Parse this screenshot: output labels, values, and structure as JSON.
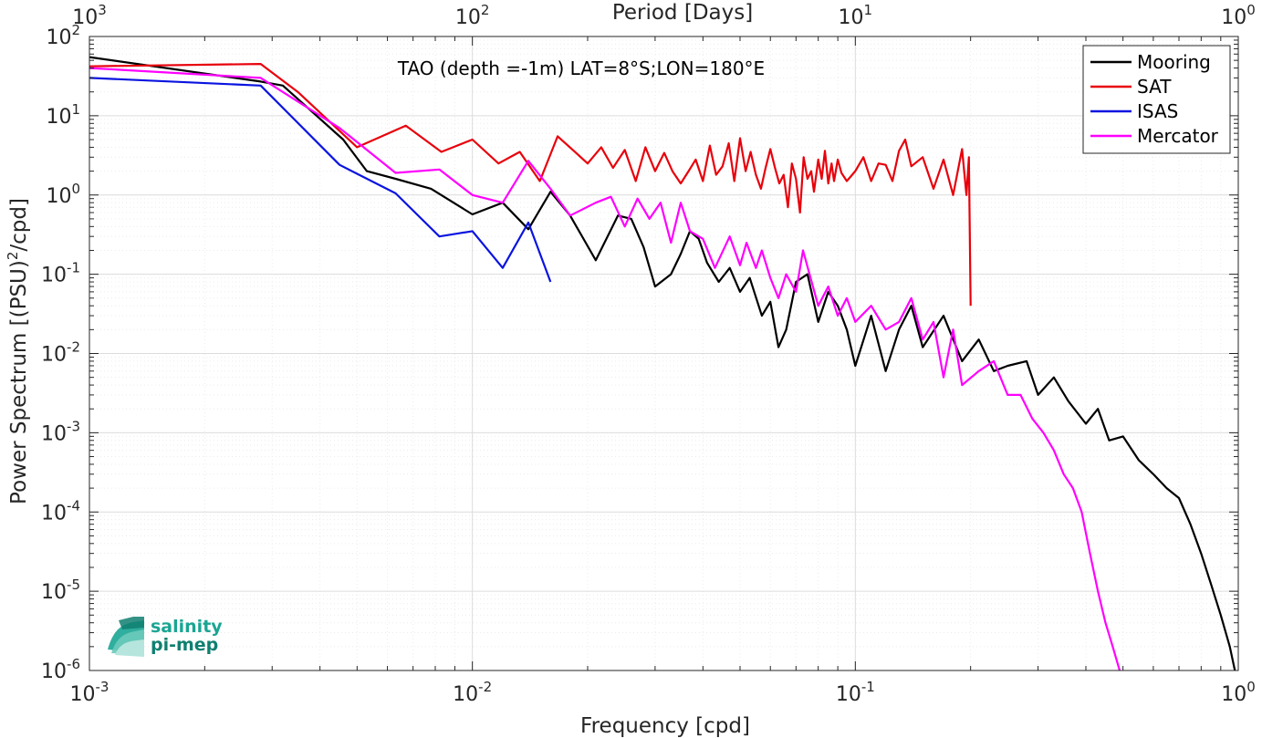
{
  "chart_data": {
    "type": "line",
    "annotation": "TAO (depth =-1m) LAT=8°S;LON=180°E",
    "xlabel": "Frequency [cpd]",
    "ylabel_main": "Power Spectrum [(PSU)",
    "ylabel_sup": "2",
    "ylabel_tail": "/cpd]",
    "top_axis_label": "Period [Days]",
    "xscale": "log",
    "yscale": "log",
    "xlim": [
      0.001,
      1
    ],
    "ylim": [
      1e-06,
      100
    ],
    "grid": true,
    "legend_position": "top-right",
    "x_ticks": [
      {
        "value": 0.001,
        "base": "10",
        "exp": "-3"
      },
      {
        "value": 0.01,
        "base": "10",
        "exp": "-2"
      },
      {
        "value": 0.1,
        "base": "10",
        "exp": "-1"
      },
      {
        "value": 1,
        "base": "10",
        "exp": "0"
      }
    ],
    "top_ticks": [
      {
        "value": 0.001,
        "base": "10",
        "exp": "3"
      },
      {
        "value": 0.01,
        "base": "10",
        "exp": "2"
      },
      {
        "value": 0.1,
        "base": "10",
        "exp": "1"
      },
      {
        "value": 1,
        "base": "10",
        "exp": "0"
      }
    ],
    "y_ticks": [
      {
        "value": 100,
        "base": "10",
        "exp": "2"
      },
      {
        "value": 10,
        "base": "10",
        "exp": "1"
      },
      {
        "value": 1,
        "base": "10",
        "exp": "0"
      },
      {
        "value": 0.1,
        "base": "10",
        "exp": "-1"
      },
      {
        "value": 0.01,
        "base": "10",
        "exp": "-2"
      },
      {
        "value": 0.001,
        "base": "10",
        "exp": "-3"
      },
      {
        "value": 0.0001,
        "base": "10",
        "exp": "-4"
      },
      {
        "value": 1e-05,
        "base": "10",
        "exp": "-5"
      },
      {
        "value": 1e-06,
        "base": "10",
        "exp": "-6"
      }
    ],
    "series": [
      {
        "name": "Mooring",
        "color": "#000000",
        "points": [
          [
            0.001,
            55
          ],
          [
            0.0028,
            27
          ],
          [
            0.0032,
            24
          ],
          [
            0.0046,
            5
          ],
          [
            0.0053,
            2
          ],
          [
            0.0063,
            1.6
          ],
          [
            0.0078,
            1.2
          ],
          [
            0.01,
            0.57
          ],
          [
            0.012,
            0.8
          ],
          [
            0.014,
            0.37
          ],
          [
            0.016,
            1.1
          ],
          [
            0.018,
            0.55
          ],
          [
            0.021,
            0.15
          ],
          [
            0.024,
            0.55
          ],
          [
            0.026,
            0.5
          ],
          [
            0.028,
            0.22
          ],
          [
            0.03,
            0.07
          ],
          [
            0.033,
            0.1
          ],
          [
            0.035,
            0.18
          ],
          [
            0.037,
            0.35
          ],
          [
            0.039,
            0.28
          ],
          [
            0.041,
            0.14
          ],
          [
            0.044,
            0.08
          ],
          [
            0.047,
            0.12
          ],
          [
            0.05,
            0.06
          ],
          [
            0.053,
            0.09
          ],
          [
            0.057,
            0.03
          ],
          [
            0.06,
            0.045
          ],
          [
            0.063,
            0.012
          ],
          [
            0.066,
            0.02
          ],
          [
            0.07,
            0.08
          ],
          [
            0.075,
            0.1
          ],
          [
            0.08,
            0.025
          ],
          [
            0.085,
            0.06
          ],
          [
            0.09,
            0.04
          ],
          [
            0.095,
            0.02
          ],
          [
            0.1,
            0.007
          ],
          [
            0.11,
            0.03
          ],
          [
            0.12,
            0.006
          ],
          [
            0.13,
            0.02
          ],
          [
            0.14,
            0.04
          ],
          [
            0.15,
            0.012
          ],
          [
            0.17,
            0.03
          ],
          [
            0.19,
            0.008
          ],
          [
            0.21,
            0.015
          ],
          [
            0.23,
            0.006
          ],
          [
            0.25,
            0.007
          ],
          [
            0.28,
            0.008
          ],
          [
            0.3,
            0.003
          ],
          [
            0.33,
            0.005
          ],
          [
            0.36,
            0.0025
          ],
          [
            0.4,
            0.0013
          ],
          [
            0.43,
            0.002
          ],
          [
            0.46,
            0.0008
          ],
          [
            0.5,
            0.0009
          ],
          [
            0.55,
            0.00045
          ],
          [
            0.6,
            0.0003
          ],
          [
            0.65,
            0.0002
          ],
          [
            0.7,
            0.00015
          ],
          [
            0.75,
            7e-05
          ],
          [
            0.8,
            3e-05
          ],
          [
            0.85,
            1.2e-05
          ],
          [
            0.9,
            5e-06
          ],
          [
            0.95,
            2e-06
          ],
          [
            0.98,
            1e-06
          ]
        ]
      },
      {
        "name": "SAT",
        "color": "#e8000b",
        "points": [
          [
            0.001,
            42
          ],
          [
            0.0028,
            45
          ],
          [
            0.0035,
            20
          ],
          [
            0.005,
            4
          ],
          [
            0.0067,
            7.5
          ],
          [
            0.0083,
            3.5
          ],
          [
            0.01,
            5
          ],
          [
            0.0117,
            2.5
          ],
          [
            0.0133,
            3.5
          ],
          [
            0.015,
            1.5
          ],
          [
            0.0167,
            5.5
          ],
          [
            0.0183,
            3.7
          ],
          [
            0.02,
            2.5
          ],
          [
            0.0217,
            4
          ],
          [
            0.0233,
            2.2
          ],
          [
            0.025,
            3.7
          ],
          [
            0.0267,
            1.5
          ],
          [
            0.0283,
            4
          ],
          [
            0.03,
            2
          ],
          [
            0.0317,
            3.4
          ],
          [
            0.0333,
            2
          ],
          [
            0.035,
            1.4
          ],
          [
            0.0367,
            2
          ],
          [
            0.0383,
            2.8
          ],
          [
            0.04,
            1.5
          ],
          [
            0.0417,
            4.2
          ],
          [
            0.0433,
            1.8
          ],
          [
            0.045,
            2.3
          ],
          [
            0.0467,
            4.5
          ],
          [
            0.0483,
            1.5
          ],
          [
            0.05,
            5.2
          ],
          [
            0.0517,
            2
          ],
          [
            0.0533,
            3.5
          ],
          [
            0.055,
            1.8
          ],
          [
            0.0567,
            1.2
          ],
          [
            0.0583,
            2.2
          ],
          [
            0.06,
            3.8
          ],
          [
            0.0617,
            2.2
          ],
          [
            0.0633,
            1.4
          ],
          [
            0.065,
            1.8
          ],
          [
            0.0667,
            0.7
          ],
          [
            0.0683,
            2.5
          ],
          [
            0.07,
            1.6
          ],
          [
            0.0717,
            0.6
          ],
          [
            0.0733,
            3
          ],
          [
            0.075,
            1.6
          ],
          [
            0.0767,
            2
          ],
          [
            0.078,
            1.1
          ],
          [
            0.08,
            2.8
          ],
          [
            0.0817,
            1.6
          ],
          [
            0.0833,
            3.6
          ],
          [
            0.085,
            1.4
          ],
          [
            0.0867,
            2.5
          ],
          [
            0.088,
            1.5
          ],
          [
            0.09,
            2.8
          ],
          [
            0.092,
            1.9
          ],
          [
            0.095,
            1.5
          ],
          [
            0.1,
            2
          ],
          [
            0.105,
            3
          ],
          [
            0.11,
            1.5
          ],
          [
            0.115,
            2.5
          ],
          [
            0.12,
            2.4
          ],
          [
            0.125,
            1.5
          ],
          [
            0.13,
            3.6
          ],
          [
            0.135,
            5
          ],
          [
            0.14,
            2.3
          ],
          [
            0.15,
            3
          ],
          [
            0.16,
            1.2
          ],
          [
            0.17,
            2.8
          ],
          [
            0.18,
            1
          ],
          [
            0.19,
            3.8
          ],
          [
            0.195,
            1
          ],
          [
            0.198,
            3
          ],
          [
            0.2,
            0.04
          ]
        ]
      },
      {
        "name": "ISAS",
        "color": "#0a14e0",
        "points": [
          [
            0.001,
            30
          ],
          [
            0.0028,
            24
          ],
          [
            0.0045,
            2.4
          ],
          [
            0.0063,
            1.05
          ],
          [
            0.0082,
            0.3
          ],
          [
            0.01,
            0.35
          ],
          [
            0.012,
            0.12
          ],
          [
            0.014,
            0.45
          ],
          [
            0.016,
            0.08
          ]
        ]
      },
      {
        "name": "Mercator",
        "color": "#ff00ff",
        "points": [
          [
            0.001,
            40
          ],
          [
            0.0028,
            30
          ],
          [
            0.0045,
            7
          ],
          [
            0.0063,
            1.9
          ],
          [
            0.0082,
            2.1
          ],
          [
            0.01,
            1
          ],
          [
            0.012,
            0.8
          ],
          [
            0.014,
            2.7
          ],
          [
            0.016,
            1.2
          ],
          [
            0.018,
            0.55
          ],
          [
            0.021,
            0.8
          ],
          [
            0.023,
            0.95
          ],
          [
            0.025,
            0.4
          ],
          [
            0.027,
            0.9
          ],
          [
            0.029,
            0.5
          ],
          [
            0.031,
            0.8
          ],
          [
            0.033,
            0.25
          ],
          [
            0.035,
            0.8
          ],
          [
            0.037,
            0.35
          ],
          [
            0.04,
            0.28
          ],
          [
            0.043,
            0.12
          ],
          [
            0.047,
            0.3
          ],
          [
            0.05,
            0.13
          ],
          [
            0.052,
            0.25
          ],
          [
            0.055,
            0.12
          ],
          [
            0.057,
            0.2
          ],
          [
            0.06,
            0.09
          ],
          [
            0.063,
            0.05
          ],
          [
            0.066,
            0.1
          ],
          [
            0.07,
            0.06
          ],
          [
            0.073,
            0.2
          ],
          [
            0.08,
            0.04
          ],
          [
            0.085,
            0.07
          ],
          [
            0.09,
            0.03
          ],
          [
            0.095,
            0.05
          ],
          [
            0.1,
            0.025
          ],
          [
            0.11,
            0.04
          ],
          [
            0.12,
            0.02
          ],
          [
            0.13,
            0.025
          ],
          [
            0.14,
            0.05
          ],
          [
            0.15,
            0.015
          ],
          [
            0.16,
            0.025
          ],
          [
            0.17,
            0.005
          ],
          [
            0.18,
            0.02
          ],
          [
            0.19,
            0.004
          ],
          [
            0.21,
            0.006
          ],
          [
            0.23,
            0.008
          ],
          [
            0.25,
            0.003
          ],
          [
            0.27,
            0.003
          ],
          [
            0.29,
            0.0015
          ],
          [
            0.31,
            0.001
          ],
          [
            0.33,
            0.0006
          ],
          [
            0.35,
            0.0003
          ],
          [
            0.37,
            0.0002
          ],
          [
            0.39,
            0.0001
          ],
          [
            0.41,
            3e-05
          ],
          [
            0.43,
            1e-05
          ],
          [
            0.45,
            4e-06
          ],
          [
            0.47,
            2e-06
          ],
          [
            0.49,
            1e-06
          ]
        ]
      }
    ]
  },
  "logo": {
    "line1": "salinity",
    "line2": "pi-mep",
    "color": "#1aa593"
  }
}
